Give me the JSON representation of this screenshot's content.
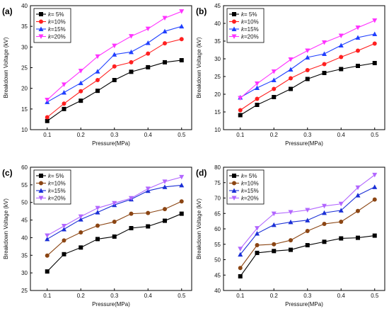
{
  "chart_data": [
    {
      "type": "line",
      "panel_label": "(a)",
      "xlabel": "Pressure(MPa)",
      "ylabel": "Breakdown Voltage (kV)",
      "x": [
        0.1,
        0.15,
        0.2,
        0.25,
        0.3,
        0.35,
        0.4,
        0.45,
        0.5
      ],
      "xlim": [
        0.05,
        0.53
      ],
      "ylim": [
        10,
        40
      ],
      "xticks": [
        "0.1",
        "0.2",
        "0.3",
        "0.4",
        "0.5"
      ],
      "yticks": [
        "10",
        "15",
        "20",
        "25",
        "30",
        "35",
        "40"
      ],
      "legend_position": "top-left",
      "series": [
        {
          "name": "k= 5%",
          "color": "#000000",
          "marker": "square",
          "values": [
            12.1,
            15.0,
            17.0,
            19.4,
            22.0,
            24.0,
            25.1,
            26.3,
            26.8
          ]
        },
        {
          "name": "k=10%",
          "color": "#ff2020",
          "marker": "circle",
          "values": [
            13.0,
            16.3,
            19.3,
            22.0,
            25.3,
            26.3,
            28.4,
            30.9,
            31.9
          ]
        },
        {
          "name": "k=15%",
          "color": "#2040ff",
          "marker": "triangle-up",
          "values": [
            16.7,
            19.0,
            21.3,
            24.1,
            28.2,
            28.8,
            31.0,
            33.8,
            35.0
          ]
        },
        {
          "name": "k=20%",
          "color": "#ff33ff",
          "marker": "triangle-down",
          "values": [
            17.2,
            20.9,
            24.2,
            27.7,
            30.3,
            32.6,
            34.4,
            37.0,
            38.6
          ]
        }
      ]
    },
    {
      "type": "line",
      "panel_label": "(b)",
      "xlabel": "Pressure(MPa)",
      "ylabel": "Breakdown Voltage (kV)",
      "x": [
        0.1,
        0.15,
        0.2,
        0.25,
        0.3,
        0.35,
        0.4,
        0.45,
        0.5
      ],
      "xlim": [
        0.05,
        0.53
      ],
      "ylim": [
        10,
        45
      ],
      "xticks": [
        "0.1",
        "0.2",
        "0.3",
        "0.4",
        "0.5"
      ],
      "yticks": [
        "10",
        "15",
        "20",
        "25",
        "30",
        "35",
        "40",
        "45"
      ],
      "legend_position": "top-left",
      "series": [
        {
          "name": "k= 5%",
          "color": "#000000",
          "marker": "square",
          "values": [
            14.1,
            17.0,
            19.2,
            21.5,
            24.3,
            26.0,
            27.1,
            28.0,
            28.8
          ]
        },
        {
          "name": "k=10%",
          "color": "#ff2020",
          "marker": "circle",
          "values": [
            15.5,
            18.7,
            21.5,
            24.5,
            26.8,
            28.5,
            30.5,
            32.3,
            34.3
          ]
        },
        {
          "name": "k=15%",
          "color": "#2040ff",
          "marker": "triangle-up",
          "values": [
            19.1,
            21.8,
            24.0,
            27.0,
            30.4,
            31.4,
            33.8,
            36.0,
            37.0
          ]
        },
        {
          "name": "k=20%",
          "color": "#ff33ff",
          "marker": "triangle-down",
          "values": [
            18.9,
            23.0,
            26.4,
            29.8,
            32.3,
            34.6,
            36.5,
            38.8,
            40.8
          ]
        }
      ]
    },
    {
      "type": "line",
      "panel_label": "(c)",
      "xlabel": "Pressure(MPa)",
      "ylabel": "Breakdown Voltage (kV)",
      "x": [
        0.1,
        0.15,
        0.2,
        0.25,
        0.3,
        0.35,
        0.4,
        0.45,
        0.5
      ],
      "xlim": [
        0.05,
        0.53
      ],
      "ylim": [
        25,
        60
      ],
      "xticks": [
        "0.1",
        "0.2",
        "0.3",
        "0.4",
        "0.5"
      ],
      "yticks": [
        "25",
        "30",
        "35",
        "40",
        "45",
        "50",
        "55",
        "60"
      ],
      "legend_position": "top-left",
      "series": [
        {
          "name": "k= 5%",
          "color": "#000000",
          "marker": "square",
          "values": [
            30.4,
            35.3,
            37.2,
            39.6,
            40.3,
            42.7,
            43.2,
            44.8,
            46.8
          ]
        },
        {
          "name": "k=10%",
          "color": "#8b4513",
          "marker": "circle",
          "values": [
            34.9,
            39.2,
            41.5,
            43.4,
            44.5,
            46.8,
            47.0,
            48.1,
            50.3
          ]
        },
        {
          "name": "k=15%",
          "color": "#1a2fd6",
          "marker": "triangle-up",
          "values": [
            39.6,
            42.4,
            45.2,
            47.2,
            49.3,
            50.9,
            53.3,
            54.4,
            54.9
          ]
        },
        {
          "name": "k=20%",
          "color": "#b266ff",
          "marker": "triangle-down",
          "values": [
            40.6,
            43.3,
            46.0,
            48.4,
            49.8,
            51.2,
            53.9,
            55.9,
            57.2
          ]
        }
      ]
    },
    {
      "type": "line",
      "panel_label": "(d)",
      "xlabel": "Pressure(MPa)",
      "ylabel": "Breakdown Voltage (kV)",
      "x": [
        0.1,
        0.15,
        0.2,
        0.25,
        0.3,
        0.35,
        0.4,
        0.45,
        0.5
      ],
      "xlim": [
        0.05,
        0.53
      ],
      "ylim": [
        40,
        80
      ],
      "xticks": [
        "0.1",
        "0.2",
        "0.3",
        "0.4",
        "0.5"
      ],
      "yticks": [
        "40",
        "45",
        "50",
        "55",
        "60",
        "65",
        "70",
        "75",
        "80"
      ],
      "legend_position": "top-left",
      "series": [
        {
          "name": "k= 5%",
          "color": "#000000",
          "marker": "square",
          "values": [
            44.6,
            52.2,
            52.8,
            53.2,
            54.7,
            55.8,
            56.9,
            57.1,
            57.8
          ]
        },
        {
          "name": "k=10%",
          "color": "#8b4513",
          "marker": "circle",
          "values": [
            47.3,
            54.7,
            55.0,
            56.3,
            59.3,
            61.6,
            62.3,
            65.8,
            69.5
          ]
        },
        {
          "name": "k=15%",
          "color": "#1a2fd6",
          "marker": "triangle-up",
          "values": [
            51.7,
            58.5,
            61.3,
            62.2,
            62.8,
            65.2,
            66.0,
            70.9,
            73.6
          ]
        },
        {
          "name": "k=20%",
          "color": "#b266ff",
          "marker": "triangle-down",
          "values": [
            53.5,
            60.2,
            64.9,
            65.4,
            66.1,
            67.4,
            68.1,
            73.4,
            77.5
          ]
        }
      ]
    }
  ]
}
